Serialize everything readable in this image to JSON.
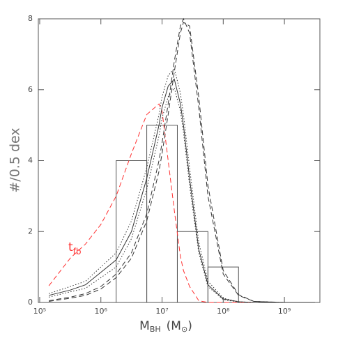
{
  "chart_data": {
    "type": "line",
    "xlabel": [
      "M",
      "BH",
      "(M",
      "⊙",
      ")"
    ],
    "ylabel": "#/0.5 dex",
    "xscale": "log",
    "xlim": [
      95000,
      3800000000
    ],
    "ylim": [
      0,
      8
    ],
    "xticks": [
      {
        "value": 100000,
        "label": "10⁵"
      },
      {
        "value": 1000000,
        "label": "10⁶"
      },
      {
        "value": 10000000,
        "label": "10⁷"
      },
      {
        "value": 100000000,
        "label": "10⁸"
      },
      {
        "value": 1000000000,
        "label": "10⁹"
      }
    ],
    "yticks": [
      0,
      2,
      4,
      6,
      8
    ],
    "x": [
      141254,
      316228,
      562341,
      1000000,
      1778279,
      3162278,
      5623413,
      8912509,
      10000000,
      12589254,
      15848932,
      19952623,
      22387211,
      28183829,
      39810717,
      56234133,
      100000000,
      177827941,
      316227766,
      1000000000,
      3162277660
    ],
    "series": [
      {
        "color": "#ff3030",
        "dash": "dashed",
        "values": [
          0.47,
          1.25,
          1.65,
          2.2,
          3.0,
          4.2,
          5.3,
          5.6,
          5.4,
          4.0,
          2.6,
          1.3,
          0.9,
          0.45,
          0.05,
          0,
          0,
          0,
          0,
          0,
          0
        ]
      },
      {
        "color": "#333333",
        "dash": "solid",
        "values": [
          0.2,
          0.35,
          0.5,
          0.85,
          1.2,
          2.0,
          3.5,
          5.0,
          5.5,
          6.1,
          6.3,
          5.6,
          5.0,
          3.5,
          1.5,
          0.5,
          0.1,
          0.02,
          0,
          0,
          0
        ]
      },
      {
        "color": "#333333",
        "dash": "dotted",
        "values": [
          0.25,
          0.45,
          0.6,
          1.0,
          1.4,
          2.3,
          3.8,
          5.3,
          5.8,
          6.4,
          6.6,
          5.9,
          5.3,
          3.8,
          1.7,
          0.6,
          0.12,
          0.02,
          0,
          0,
          0
        ]
      },
      {
        "color": "#333333",
        "dash": "dotted",
        "values": [
          0.15,
          0.3,
          0.4,
          0.7,
          1.0,
          1.8,
          3.2,
          4.7,
          5.2,
          5.8,
          6.05,
          5.4,
          4.8,
          3.3,
          1.4,
          0.45,
          0.08,
          0.01,
          0,
          0,
          0
        ]
      },
      {
        "color": "#333333",
        "dash": "dashed",
        "values": [
          0.05,
          0.15,
          0.25,
          0.45,
          0.8,
          1.4,
          2.5,
          4.0,
          4.5,
          5.6,
          6.8,
          7.8,
          8.0,
          7.6,
          5.5,
          3.0,
          0.8,
          0.2,
          0.03,
          0,
          0
        ]
      },
      {
        "color": "#333333",
        "dash": "dashed",
        "values": [
          0.03,
          0.12,
          0.2,
          0.38,
          0.7,
          1.25,
          2.3,
          3.7,
          4.2,
          5.3,
          6.5,
          7.6,
          7.9,
          7.8,
          5.8,
          3.3,
          0.9,
          0.22,
          0.03,
          0,
          0
        ]
      }
    ],
    "histogram": {
      "color": "#555555",
      "bins": [
        1778279,
        5623413,
        17782794,
        56234133,
        177827941
      ],
      "counts": [
        4,
        5,
        2,
        1
      ]
    },
    "annotation": {
      "text": "t",
      "sub": "fb",
      "color": "#ff3030"
    }
  }
}
